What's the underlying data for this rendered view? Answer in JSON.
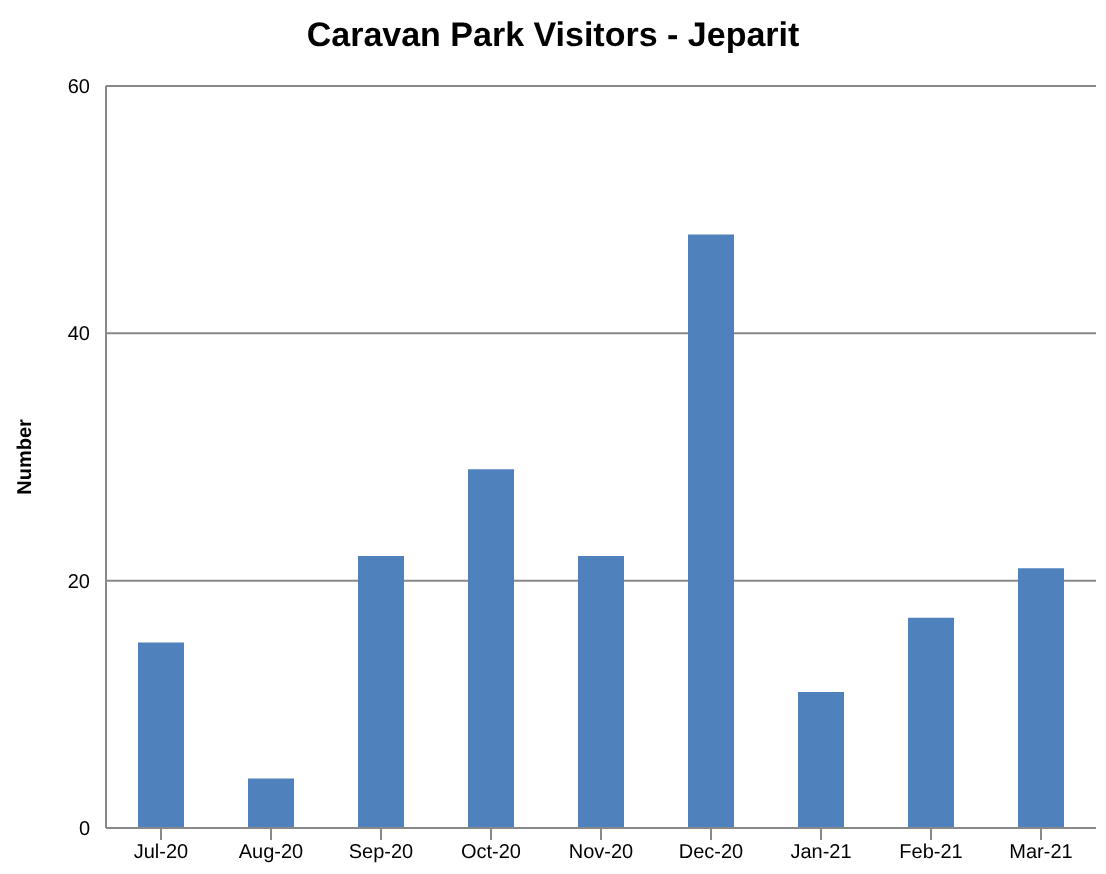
{
  "chart_data": {
    "type": "bar",
    "title": "Caravan Park Visitors - Jeparit",
    "ylabel": "Number",
    "categories": [
      "Jul-20",
      "Aug-20",
      "Sep-20",
      "Oct-20",
      "Nov-20",
      "Dec-20",
      "Jan-21",
      "Feb-21",
      "Mar-21"
    ],
    "values": [
      15,
      4,
      22,
      29,
      22,
      48,
      11,
      17,
      21
    ],
    "color": "#4f81bd",
    "ylim": [
      0,
      60
    ],
    "yticks": [
      0,
      20,
      40,
      60
    ],
    "grid": "y",
    "legend": false
  }
}
